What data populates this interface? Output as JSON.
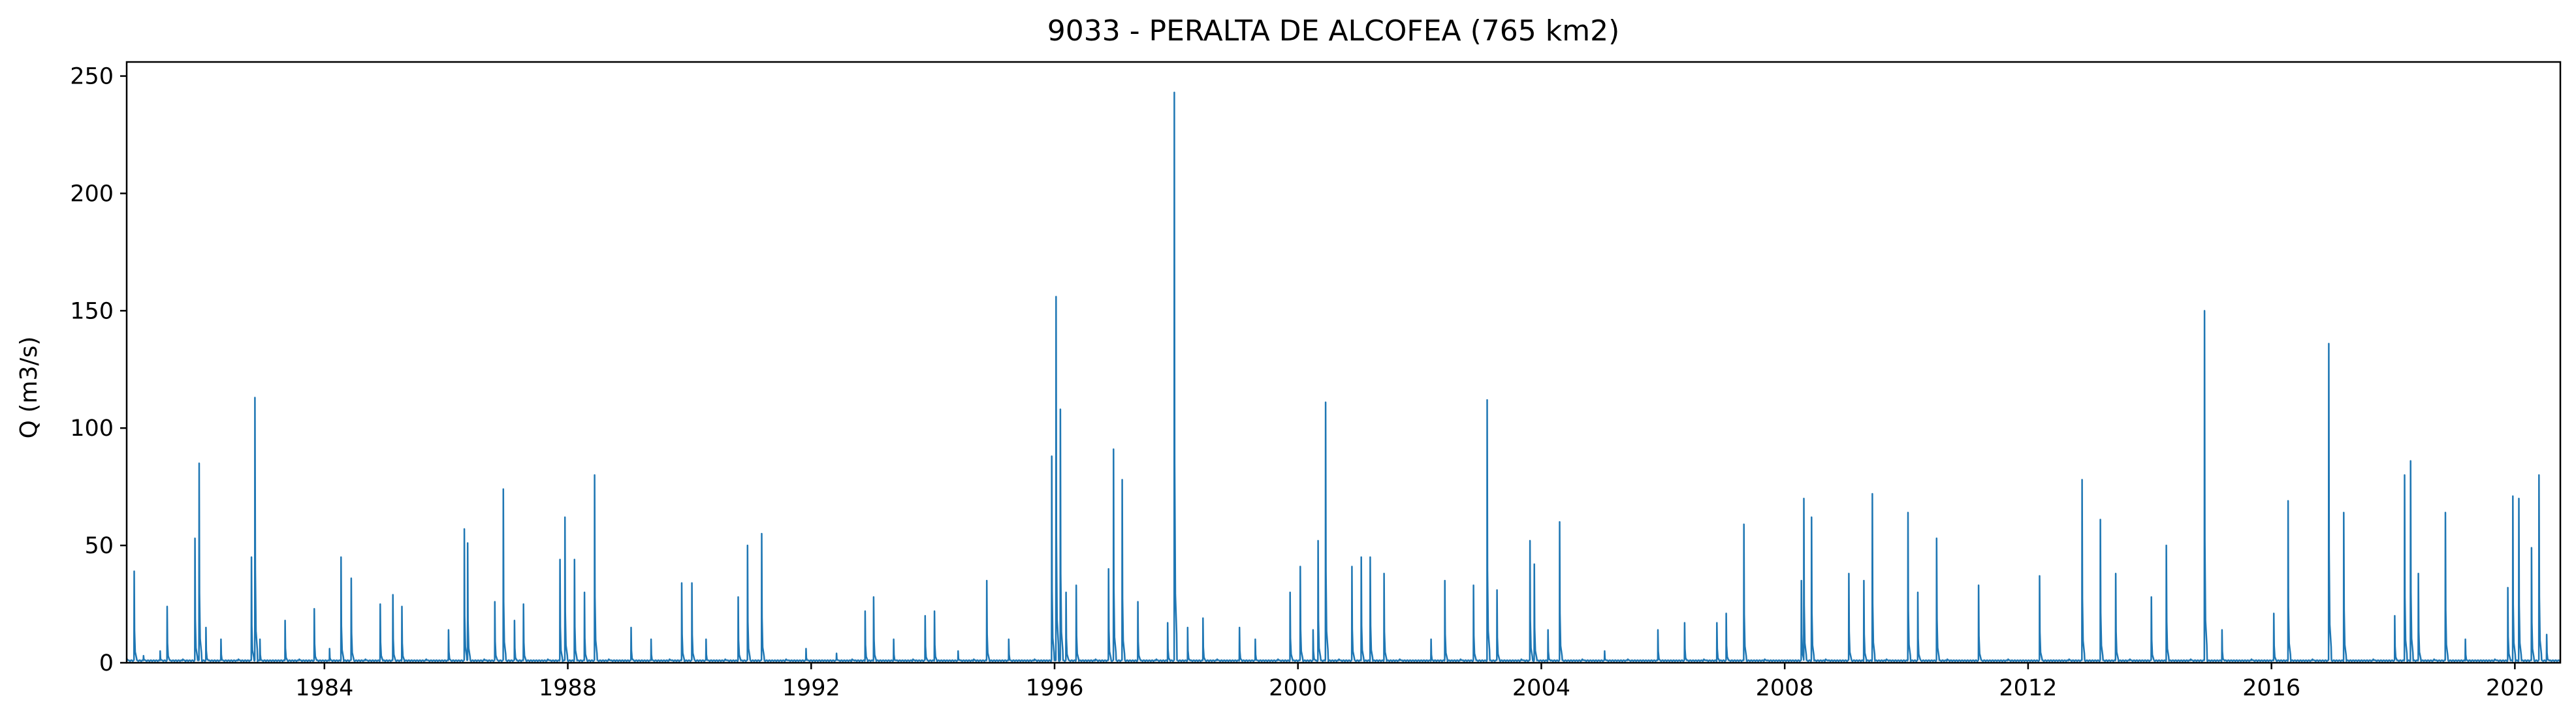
{
  "chart_data": {
    "type": "line",
    "title": "9033 - PERALTA DE ALCOFEA (765 km2)",
    "xlabel": "",
    "ylabel": "Q (m3/s)",
    "xlim": [
      "1980-10-01",
      "2020-09-30"
    ],
    "ylim": [
      0,
      256
    ],
    "x_ticks": [
      "1984",
      "1988",
      "1992",
      "1996",
      "2000",
      "2004",
      "2008",
      "2012",
      "2016",
      "2020"
    ],
    "y_ticks": [
      0,
      50,
      100,
      150,
      200,
      250
    ],
    "grid": false,
    "legend": "none",
    "line_color": "#1f77b4",
    "sampling": "approximate peak events read from the figure",
    "series": [
      {
        "values": [
          [
            "1980-10-01",
            2
          ],
          [
            "1980-11-15",
            39
          ],
          [
            "1981-01-10",
            3
          ],
          [
            "1981-04-20",
            5
          ],
          [
            "1981-06-01",
            24
          ],
          [
            "1981-09-01",
            1
          ],
          [
            "1981-11-15",
            53
          ],
          [
            "1981-12-10",
            85
          ],
          [
            "1982-01-20",
            15
          ],
          [
            "1982-04-20",
            10
          ],
          [
            "1982-08-01",
            1
          ],
          [
            "1982-10-20",
            45
          ],
          [
            "1982-11-10",
            113
          ],
          [
            "1982-12-10",
            10
          ],
          [
            "1983-05-10",
            18
          ],
          [
            "1983-08-01",
            1
          ],
          [
            "1983-11-01",
            23
          ],
          [
            "1984-02-01",
            6
          ],
          [
            "1984-04-10",
            45
          ],
          [
            "1984-06-10",
            36
          ],
          [
            "1984-09-01",
            1
          ],
          [
            "1984-12-01",
            25
          ],
          [
            "1985-02-15",
            29
          ],
          [
            "1985-04-10",
            24
          ],
          [
            "1985-09-01",
            1
          ],
          [
            "1986-01-15",
            14
          ],
          [
            "1986-04-20",
            57
          ],
          [
            "1986-05-10",
            51
          ],
          [
            "1986-08-15",
            1
          ],
          [
            "1986-10-20",
            26
          ],
          [
            "1986-12-10",
            74
          ],
          [
            "1987-02-15",
            18
          ],
          [
            "1987-04-10",
            25
          ],
          [
            "1987-09-01",
            1
          ],
          [
            "1987-11-15",
            44
          ],
          [
            "1987-12-15",
            62
          ],
          [
            "1988-02-10",
            44
          ],
          [
            "1988-04-10",
            30
          ],
          [
            "1988-06-10",
            80
          ],
          [
            "1988-09-01",
            1
          ],
          [
            "1989-01-15",
            15
          ],
          [
            "1989-05-15",
            10
          ],
          [
            "1989-09-01",
            1
          ],
          [
            "1989-11-15",
            34
          ],
          [
            "1990-01-15",
            34
          ],
          [
            "1990-04-10",
            10
          ],
          [
            "1990-08-01",
            1
          ],
          [
            "1990-10-20",
            28
          ],
          [
            "1990-12-15",
            50
          ],
          [
            "1991-03-10",
            55
          ],
          [
            "1991-08-01",
            1
          ],
          [
            "1991-12-01",
            6
          ],
          [
            "1992-06-01",
            4
          ],
          [
            "1992-09-01",
            1
          ],
          [
            "1992-11-20",
            22
          ],
          [
            "1993-01-10",
            28
          ],
          [
            "1993-05-10",
            10
          ],
          [
            "1993-09-01",
            1
          ],
          [
            "1993-11-15",
            20
          ],
          [
            "1994-01-10",
            22
          ],
          [
            "1994-06-01",
            5
          ],
          [
            "1994-09-01",
            1
          ],
          [
            "1994-11-20",
            35
          ],
          [
            "1995-04-01",
            10
          ],
          [
            "1995-09-01",
            1
          ],
          [
            "1995-12-15",
            88
          ],
          [
            "1996-01-10",
            156
          ],
          [
            "1996-02-05",
            108
          ],
          [
            "1996-03-10",
            30
          ],
          [
            "1996-05-10",
            33
          ],
          [
            "1996-09-01",
            1
          ],
          [
            "1996-11-20",
            40
          ],
          [
            "1996-12-20",
            91
          ],
          [
            "1997-02-10",
            78
          ],
          [
            "1997-05-15",
            26
          ],
          [
            "1997-09-01",
            1
          ],
          [
            "1997-11-10",
            17
          ],
          [
            "1997-12-20",
            243
          ],
          [
            "1998-03-10",
            15
          ],
          [
            "1998-06-10",
            19
          ],
          [
            "1998-09-01",
            1
          ],
          [
            "1999-01-15",
            15
          ],
          [
            "1999-04-20",
            10
          ],
          [
            "1999-09-01",
            1
          ],
          [
            "1999-11-15",
            30
          ],
          [
            "2000-01-15",
            41
          ],
          [
            "2000-04-01",
            14
          ],
          [
            "2000-05-01",
            52
          ],
          [
            "2000-06-15",
            111
          ],
          [
            "2000-09-01",
            1
          ],
          [
            "2000-11-20",
            41
          ],
          [
            "2001-01-15",
            45
          ],
          [
            "2001-03-10",
            45
          ],
          [
            "2001-06-01",
            38
          ],
          [
            "2001-09-01",
            1
          ],
          [
            "2002-03-10",
            10
          ],
          [
            "2002-06-01",
            35
          ],
          [
            "2002-09-01",
            1
          ],
          [
            "2002-11-20",
            33
          ],
          [
            "2003-02-10",
            112
          ],
          [
            "2003-04-10",
            31
          ],
          [
            "2003-09-01",
            1
          ],
          [
            "2003-10-25",
            52
          ],
          [
            "2003-11-20",
            42
          ],
          [
            "2004-02-10",
            14
          ],
          [
            "2004-04-20",
            60
          ],
          [
            "2004-09-01",
            1
          ],
          [
            "2005-01-15",
            5
          ],
          [
            "2005-06-01",
            1
          ],
          [
            "2005-12-01",
            14
          ],
          [
            "2006-05-10",
            17
          ],
          [
            "2006-09-01",
            1
          ],
          [
            "2006-11-20",
            17
          ],
          [
            "2007-01-15",
            21
          ],
          [
            "2007-05-01",
            59
          ],
          [
            "2007-09-01",
            1
          ],
          [
            "2008-04-10",
            35
          ],
          [
            "2008-04-25",
            70
          ],
          [
            "2008-06-10",
            62
          ],
          [
            "2008-09-01",
            1
          ],
          [
            "2009-01-20",
            38
          ],
          [
            "2009-04-20",
            35
          ],
          [
            "2009-06-10",
            72
          ],
          [
            "2009-09-01",
            1
          ],
          [
            "2010-01-10",
            64
          ],
          [
            "2010-03-10",
            30
          ],
          [
            "2010-07-01",
            53
          ],
          [
            "2010-09-01",
            1
          ],
          [
            "2011-03-10",
            33
          ],
          [
            "2011-09-01",
            1
          ],
          [
            "2012-03-10",
            37
          ],
          [
            "2012-09-01",
            1
          ],
          [
            "2012-11-20",
            78
          ],
          [
            "2013-03-10",
            61
          ],
          [
            "2013-06-10",
            38
          ],
          [
            "2013-09-01",
            1
          ],
          [
            "2014-01-10",
            28
          ],
          [
            "2014-04-10",
            50
          ],
          [
            "2014-09-01",
            1
          ],
          [
            "2014-11-25",
            150
          ],
          [
            "2015-03-10",
            14
          ],
          [
            "2015-09-01",
            1
          ],
          [
            "2016-01-15",
            21
          ],
          [
            "2016-04-10",
            69
          ],
          [
            "2016-09-01",
            1
          ],
          [
            "2016-12-10",
            136
          ],
          [
            "2017-03-10",
            64
          ],
          [
            "2017-09-01",
            1
          ],
          [
            "2018-01-10",
            20
          ],
          [
            "2018-03-10",
            80
          ],
          [
            "2018-04-15",
            86
          ],
          [
            "2018-06-01",
            38
          ],
          [
            "2018-09-01",
            1
          ],
          [
            "2018-11-10",
            64
          ],
          [
            "2019-03-10",
            10
          ],
          [
            "2019-09-01",
            1
          ],
          [
            "2019-11-20",
            32
          ],
          [
            "2019-12-20",
            71
          ],
          [
            "2020-01-25",
            70
          ],
          [
            "2020-04-10",
            49
          ],
          [
            "2020-05-25",
            80
          ],
          [
            "2020-07-10",
            12
          ],
          [
            "2020-09-30",
            1
          ]
        ]
      }
    ]
  }
}
